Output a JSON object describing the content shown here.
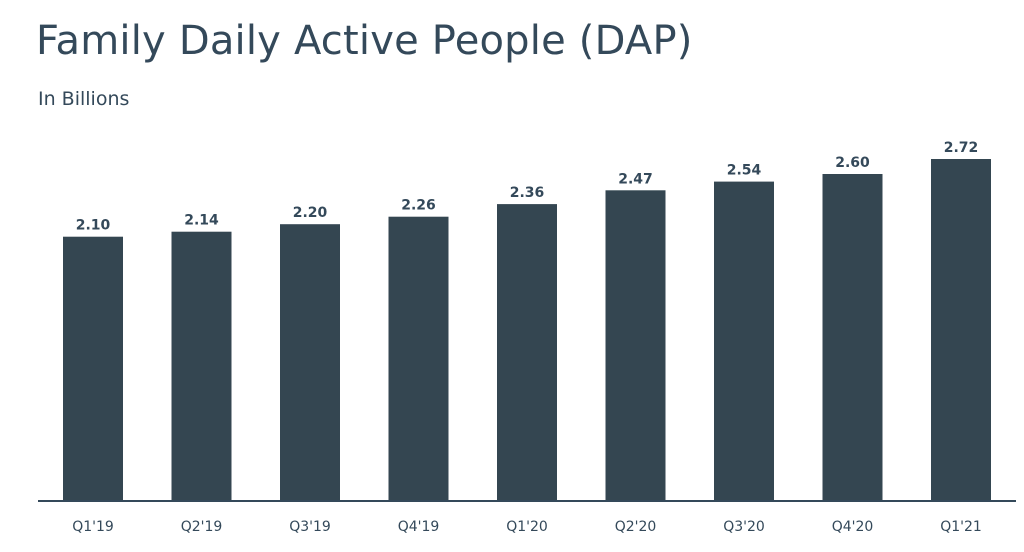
{
  "chart_data": {
    "type": "bar",
    "title": "Family Daily Active People (DAP)",
    "subtitle": "In Billions",
    "categories": [
      "Q1'19",
      "Q2'19",
      "Q3'19",
      "Q4'19",
      "Q1'20",
      "Q2'20",
      "Q3'20",
      "Q4'20",
      "Q1'21"
    ],
    "values": [
      2.1,
      2.14,
      2.2,
      2.26,
      2.36,
      2.47,
      2.54,
      2.6,
      2.72
    ],
    "value_labels": [
      "2.10",
      "2.14",
      "2.20",
      "2.26",
      "2.36",
      "2.47",
      "2.54",
      "2.60",
      "2.72"
    ],
    "xlabel": "",
    "ylabel": "",
    "ylim": [
      0,
      2.72
    ],
    "grid": false,
    "legend": "none",
    "bar_color": "#344651"
  }
}
